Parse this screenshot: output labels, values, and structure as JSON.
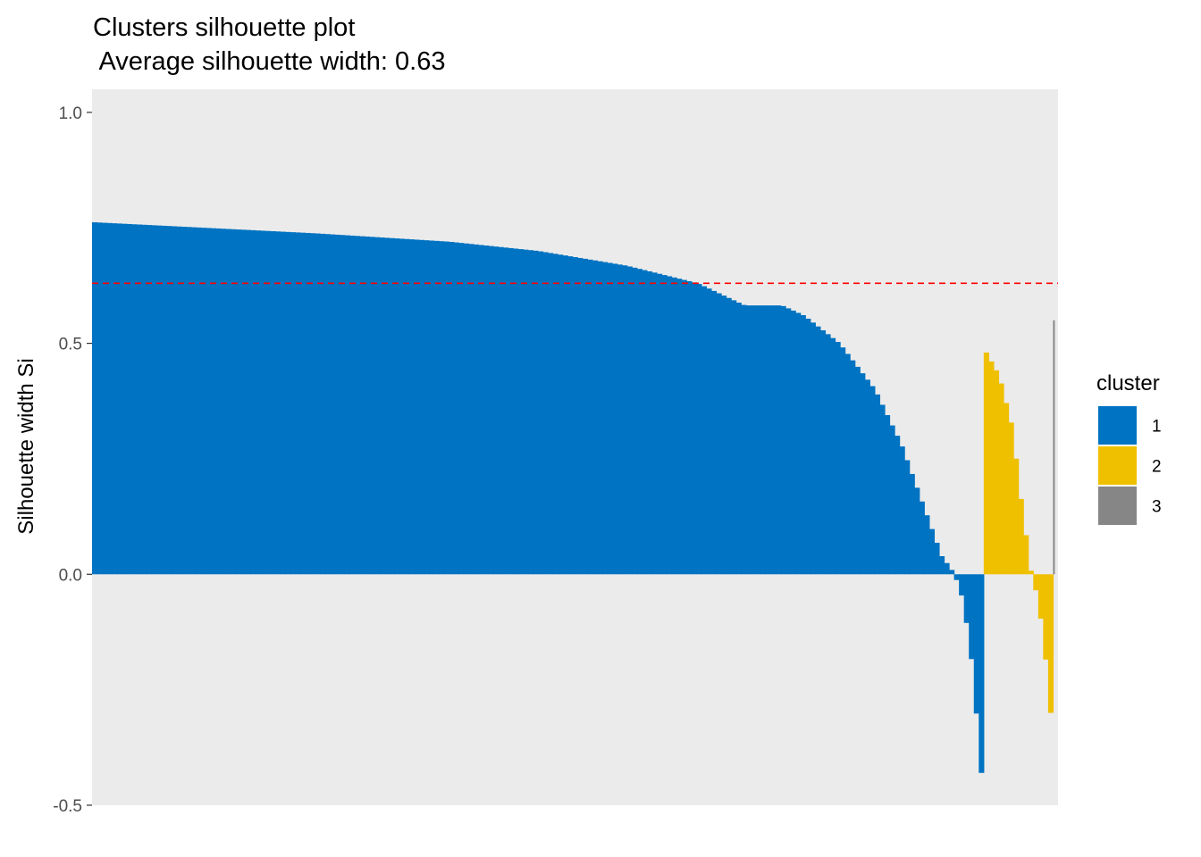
{
  "chart_data": {
    "type": "bar",
    "title": "Clusters silhouette plot",
    "subtitle": " Average silhouette width: 0.63",
    "xlabel": "",
    "ylabel": "Silhouette width Si",
    "ylim": [
      -0.5,
      1.05
    ],
    "yticks": [
      {
        "value": -0.5,
        "label": "-0.5"
      },
      {
        "value": 0.0,
        "label": "0.0"
      },
      {
        "value": 0.5,
        "label": "0.5"
      },
      {
        "value": 1.0,
        "label": "1.0"
      }
    ],
    "average_line": {
      "value": 0.63,
      "color": "#ff0000",
      "style": "dashed"
    },
    "grid": false,
    "legend": {
      "title": "cluster",
      "placement": "right"
    },
    "clusters": [
      {
        "name": "1",
        "color": "#0073c2",
        "count": 180,
        "profile": [
          [
            0,
            0.762
          ],
          [
            0.25,
            0.738
          ],
          [
            0.4,
            0.72
          ],
          [
            0.5,
            0.7
          ],
          [
            0.6,
            0.668
          ],
          [
            0.68,
            0.63
          ],
          [
            0.733,
            0.582
          ],
          [
            0.775,
            0.582
          ],
          [
            0.8,
            0.56
          ],
          [
            0.84,
            0.5
          ],
          [
            0.88,
            0.4
          ],
          [
            0.91,
            0.28
          ],
          [
            0.94,
            0.12
          ],
          [
            0.955,
            0.04
          ],
          [
            0.97,
            0.0
          ],
          [
            0.98,
            -0.06
          ],
          [
            0.99,
            -0.2
          ],
          [
            1.0,
            -0.43
          ]
        ]
      },
      {
        "name": "2",
        "color": "#efc000",
        "count": 14,
        "profile": [
          [
            0,
            0.48
          ],
          [
            0.2,
            0.43
          ],
          [
            0.4,
            0.32
          ],
          [
            0.55,
            0.15
          ],
          [
            0.7,
            0.0
          ],
          [
            0.8,
            -0.05
          ],
          [
            0.9,
            -0.15
          ],
          [
            1.0,
            -0.3
          ]
        ]
      },
      {
        "name": "3",
        "color": "#868686",
        "count": 1,
        "profile": [
          [
            0,
            0.55
          ],
          [
            1.0,
            0.55
          ]
        ]
      }
    ]
  }
}
